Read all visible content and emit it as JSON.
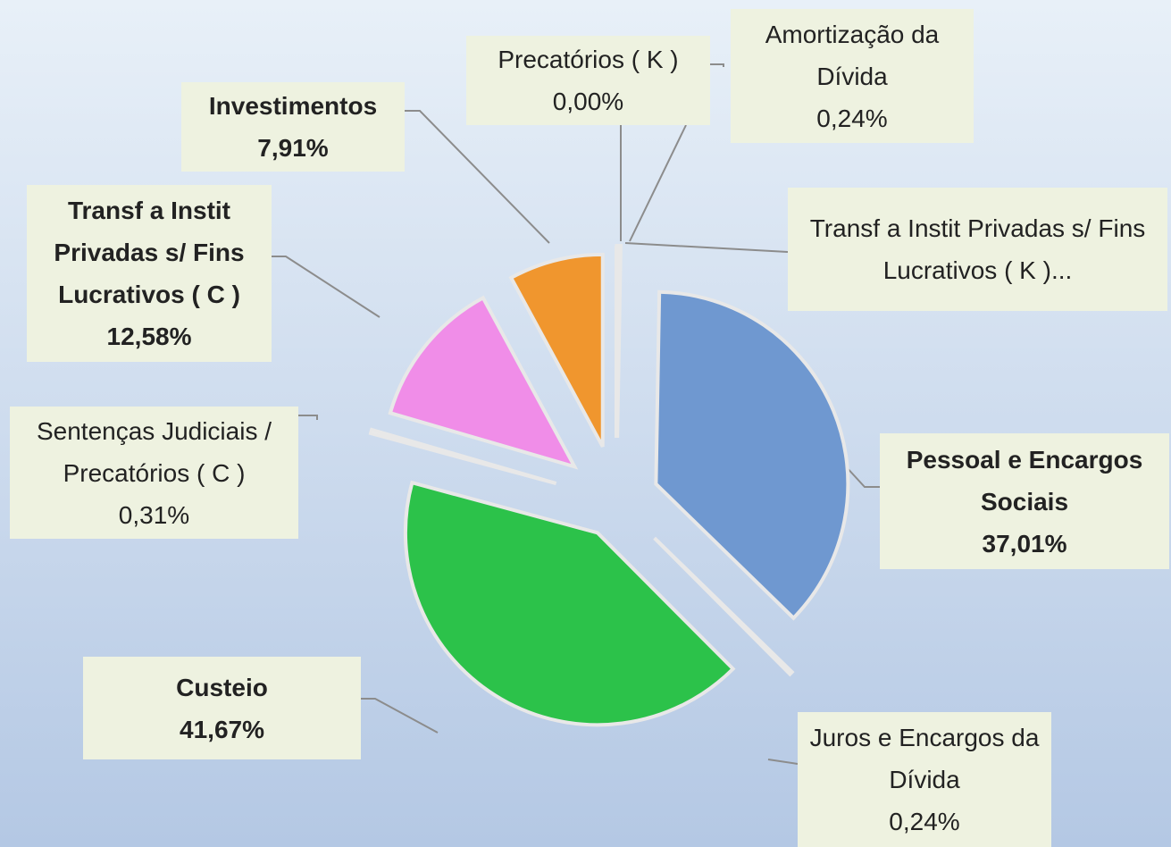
{
  "chart_data": {
    "type": "pie",
    "categories": [
      "Precatórios ( K )",
      "Amortização da Dívida",
      "Transf a Instit Privadas s/ Fins Lucrativos ( K )...",
      "Pessoal e Encargos Sociais",
      "Juros e Encargos da Dívida",
      "Custeio",
      "Sentenças Judiciais / Precatórios ( C )",
      "Transf a Instit Privadas s/ Fins Lucrativos ( C )",
      "Investimentos"
    ],
    "values": [
      0.0,
      0.24,
      0.04,
      37.01,
      0.24,
      41.67,
      0.31,
      12.58,
      7.91
    ],
    "value_labels": [
      "0,00%",
      "0,24%",
      null,
      "37,01%",
      "0,24%",
      "41,67%",
      "0,31%",
      "12,58%",
      "7,91%"
    ],
    "colors": [
      "#8a8a8a",
      "#9a7ab8",
      "#c8d860",
      "#6f98d0",
      "#a05050",
      "#2cc24a",
      "#f4f4f4",
      "#f08de8",
      "#f0962e"
    ]
  }
}
